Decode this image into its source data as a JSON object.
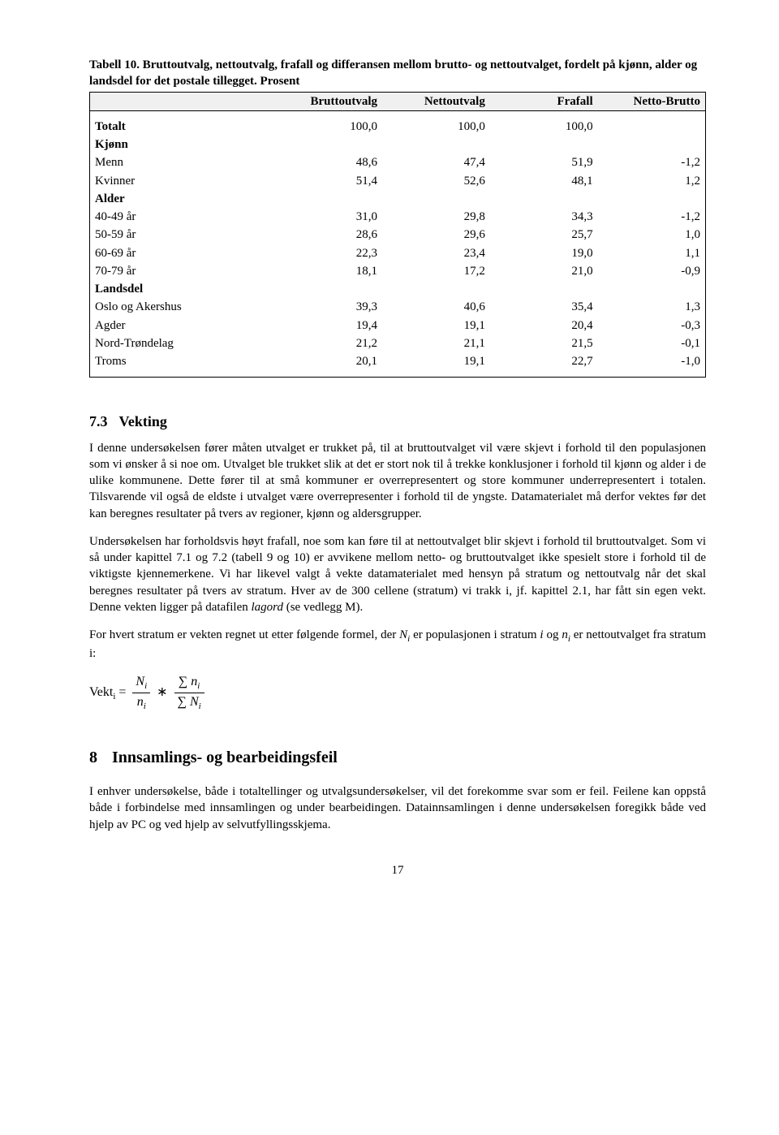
{
  "table": {
    "caption_label": "Tabell 10.",
    "caption_text": "Bruttoutvalg, nettoutvalg, frafall og differansen mellom brutto- og nettoutvalget, fordelt på kjønn, alder og landsdel for det postale tillegget. Prosent",
    "columns": [
      "",
      "Bruttoutvalg",
      "Nettoutvalg",
      "Frafall",
      "Netto-Brutto"
    ],
    "col_widths": [
      "30%",
      "17.5%",
      "17.5%",
      "17.5%",
      "17.5%"
    ],
    "total": {
      "label": "Totalt",
      "values": [
        "100,0",
        "100,0",
        "100,0",
        ""
      ]
    },
    "groups": [
      {
        "header": "Kjønn",
        "rows": [
          {
            "label": "Menn",
            "values": [
              "48,6",
              "47,4",
              "51,9",
              "-1,2"
            ]
          },
          {
            "label": "Kvinner",
            "values": [
              "51,4",
              "52,6",
              "48,1",
              "1,2"
            ]
          }
        ]
      },
      {
        "header": "Alder",
        "rows": [
          {
            "label": "40-49 år",
            "values": [
              "31,0",
              "29,8",
              "34,3",
              "-1,2"
            ]
          },
          {
            "label": "50-59 år",
            "values": [
              "28,6",
              "29,6",
              "25,7",
              "1,0"
            ]
          },
          {
            "label": "60-69 år",
            "values": [
              "22,3",
              "23,4",
              "19,0",
              "1,1"
            ]
          },
          {
            "label": "70-79 år",
            "values": [
              "18,1",
              "17,2",
              "21,0",
              "-0,9"
            ]
          }
        ]
      },
      {
        "header": "Landsdel",
        "rows": [
          {
            "label": "Oslo og Akershus",
            "values": [
              "39,3",
              "40,6",
              "35,4",
              "1,3"
            ]
          },
          {
            "label": "Agder",
            "values": [
              "19,4",
              "19,1",
              "20,4",
              "-0,3"
            ]
          },
          {
            "label": "Nord-Trøndelag",
            "values": [
              "21,2",
              "21,1",
              "21,5",
              "-0,1"
            ]
          },
          {
            "label": "Troms",
            "values": [
              "20,1",
              "19,1",
              "22,7",
              "-1,0"
            ]
          }
        ]
      }
    ]
  },
  "section73": {
    "number": "7.3",
    "title": "Vekting",
    "para1": "I denne undersøkelsen fører måten utvalget er trukket på, til at bruttoutvalget vil være skjevt i forhold til den populasjonen som vi ønsker å si noe om. Utvalget ble trukket slik at det er stort nok til å  trekke konklusjoner i forhold til kjønn og alder i  de ulike kommunene. Dette fører til at små kommuner er overrepresentert og store kommuner underrepresentert i totalen. Tilsvarende vil også de eldste i utvalget være overrepresenter i forhold til de yngste. Datamaterialet må derfor vektes før det kan beregnes resultater på tvers av regioner, kjønn og aldersgrupper.",
    "para2": "Undersøkelsen har forholdsvis høyt frafall, noe som kan føre til at nettoutvalget blir skjevt i forhold til bruttoutvalget. Som vi så under kapittel 7.1 og 7.2 (tabell 9 og 10) er avvikene mellom netto- og bruttoutvalget ikke spesielt store i forhold til de viktigste kjennemerkene. Vi har likevel valgt å vekte datamaterialet med hensyn på stratum og nettoutvalg når det skal beregnes resultater på tvers av stratum. Hver av de 300 cellene (stratum) vi trakk i, jf. kapittel 2.1, har fått sin egen vekt. Denne vekten ligger på datafilen lagord (se vedlegg M).",
    "para3_a": "For hvert stratum er vekten regnet ut etter følgende formel, der ",
    "para3_b": " er populasjonen i stratum ",
    "para3_c": " og ",
    "para3_d": " er nettoutvalget fra stratum i:",
    "formula_lhs": "Vekt"
  },
  "chapter8": {
    "number": "8",
    "title": "Innsamlings- og bearbeidingsfeil",
    "para1": "I enhver undersøkelse, både i totaltellinger og utvalgsundersøkelser, vil det forekomme svar som er feil. Feilene kan oppstå både i forbindelse med innsamlingen og under bearbeidingen. Datainnsamlingen i denne undersøkelsen foregikk både ved hjelp av PC og ved hjelp av selvutfyllingsskjema."
  },
  "page_number": "17"
}
